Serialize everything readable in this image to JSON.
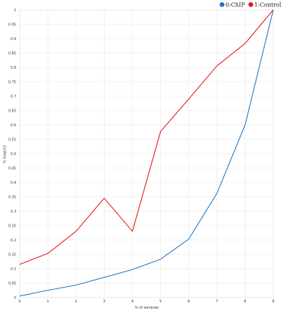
{
  "chart_data": {
    "type": "line",
    "xlabel": "% of windows",
    "ylabel": "% (Log(x))",
    "x": [
      0,
      1,
      2,
      3,
      4,
      5,
      6,
      7,
      8,
      9
    ],
    "xlim": [
      0,
      9
    ],
    "ylim": [
      0,
      1
    ],
    "y_ticks": [
      "0",
      "0.05",
      "0.1",
      "0.15",
      "0.2",
      "0.25",
      "0.3",
      "0.35",
      "0.4",
      "0.45",
      "0.5",
      "0.55",
      "0.6",
      "0.65",
      "0.7",
      "0.75",
      "0.8",
      "0.85",
      "0.9",
      "0.95",
      "1"
    ],
    "x_ticks": [
      "0",
      "1",
      "2",
      "3",
      "4",
      "5",
      "6",
      "7",
      "8",
      "9"
    ],
    "grid": true,
    "legend_position": "top-right",
    "series": [
      {
        "name": "0:ChIP",
        "color": "#1f77c4",
        "values": [
          0.005,
          0.025,
          0.043,
          0.07,
          0.097,
          0.133,
          0.203,
          0.362,
          0.6,
          1.0
        ]
      },
      {
        "name": "1:Control",
        "color": "#e8131b",
        "values": [
          0.115,
          0.153,
          0.23,
          0.345,
          0.23,
          0.577,
          0.69,
          0.805,
          0.883,
          1.0
        ]
      }
    ]
  }
}
